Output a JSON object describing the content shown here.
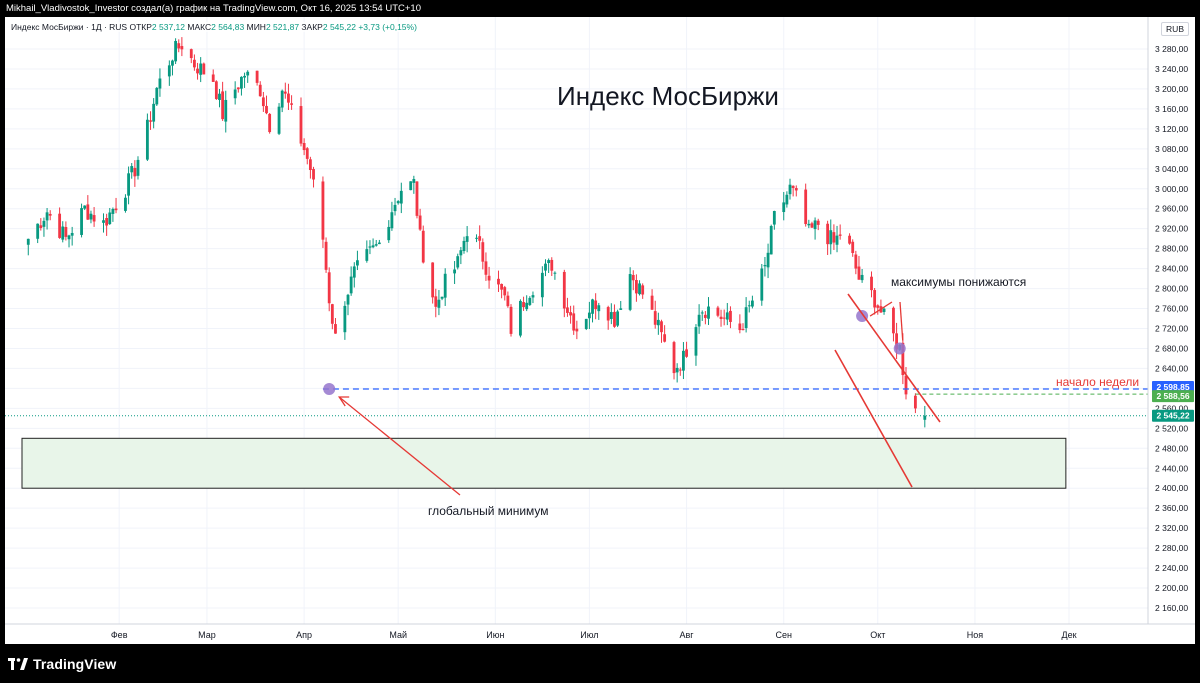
{
  "header": {
    "attribution": "Mikhail_Vladivostok_Investor создал(а) график на TradingView.com, Окт 16, 2025 13:54 UTC+10"
  },
  "legend": {
    "symbol": "Индекс МосБиржи · 1Д · RUS",
    "open_label": "ОТКР",
    "open_value": "2 537,12",
    "high_label": "МАКС",
    "high_value": "2 564,83",
    "low_label": "МИН",
    "low_value": "2 521,87",
    "close_label": "ЗАКР",
    "close_value": "2 545,22",
    "change": "+3,73 (+0,15%)"
  },
  "currency": "RUB",
  "footer": {
    "brand": "TradingView"
  },
  "colors": {
    "up": "#089981",
    "down": "#F23645",
    "zone_fill": "#E8F5E9",
    "level_line": "#2962FF",
    "price_tag_blue": "#2962FF",
    "price_tag_green": "#4CAF50",
    "price_tag_teal": "#089981",
    "annotation": "#E53935",
    "marker": "#9575CD"
  },
  "chart_data": {
    "type": "candlestick",
    "title": "Индекс МосБиржи",
    "ylim": [
      2120,
      3320
    ],
    "y_ticks": [
      "3 280,00",
      "3 240,00",
      "3 200,00",
      "3 160,00",
      "3 120,00",
      "3 080,00",
      "3 040,00",
      "3 000,00",
      "2 960,00",
      "2 920,00",
      "2 880,00",
      "2 840,00",
      "2 800,00",
      "2 760,00",
      "2 720,00",
      "2 680,00",
      "2 640,00",
      "2 600,00",
      "2 560,00",
      "2 520,00",
      "2 480,00",
      "2 440,00",
      "2 400,00",
      "2 360,00",
      "2 320,00",
      "2 280,00",
      "2 240,00",
      "2 200,00",
      "2 160,00"
    ],
    "x_ticks": [
      {
        "label": "Фев",
        "date": "2025-02-01"
      },
      {
        "label": "Мар",
        "date": "2025-03-01"
      },
      {
        "label": "Апр",
        "date": "2025-04-01"
      },
      {
        "label": "Май",
        "date": "2025-05-01"
      },
      {
        "label": "Июн",
        "date": "2025-06-01"
      },
      {
        "label": "Июл",
        "date": "2025-07-01"
      },
      {
        "label": "Авг",
        "date": "2025-08-01"
      },
      {
        "label": "Сен",
        "date": "2025-09-01"
      },
      {
        "label": "Окт",
        "date": "2025-10-01"
      },
      {
        "label": "Ноя",
        "date": "2025-11-01"
      },
      {
        "label": "Дек",
        "date": "2025-12-01"
      }
    ],
    "close_path": [
      [
        "2025-01-03",
        2900
      ],
      [
        "2025-01-09",
        2955
      ],
      [
        "2025-01-15",
        2900
      ],
      [
        "2025-01-21",
        2960
      ],
      [
        "2025-01-27",
        2930
      ],
      [
        "2025-02-03",
        3000
      ],
      [
        "2025-02-06",
        3040
      ],
      [
        "2025-02-10",
        3120
      ],
      [
        "2025-02-13",
        3200
      ],
      [
        "2025-02-18",
        3270
      ],
      [
        "2025-02-21",
        3290
      ],
      [
        "2025-02-25",
        3250
      ],
      [
        "2025-03-03",
        3220
      ],
      [
        "2025-03-06",
        3150
      ],
      [
        "2025-03-10",
        3200
      ],
      [
        "2025-03-13",
        3230
      ],
      [
        "2025-03-18",
        3200
      ],
      [
        "2025-03-21",
        3130
      ],
      [
        "2025-03-25",
        3200
      ],
      [
        "2025-03-28",
        3150
      ],
      [
        "2025-04-01",
        3080
      ],
      [
        "2025-04-03",
        3040
      ],
      [
        "2025-04-07",
        2900
      ],
      [
        "2025-04-09",
        2780
      ],
      [
        "2025-04-11",
        2700
      ],
      [
        "2025-04-14",
        2780
      ],
      [
        "2025-04-17",
        2830
      ],
      [
        "2025-04-22",
        2870
      ],
      [
        "2025-04-25",
        2890
      ],
      [
        "2025-04-29",
        2960
      ],
      [
        "2025-05-02",
        3000
      ],
      [
        "2025-05-06",
        3010
      ],
      [
        "2025-05-08",
        2900
      ],
      [
        "2025-05-13",
        2760
      ],
      [
        "2025-05-15",
        2800
      ],
      [
        "2025-05-20",
        2850
      ],
      [
        "2025-05-23",
        2920
      ],
      [
        "2025-05-27",
        2880
      ],
      [
        "2025-05-30",
        2830
      ],
      [
        "2025-06-04",
        2780
      ],
      [
        "2025-06-06",
        2720
      ],
      [
        "2025-06-11",
        2790
      ],
      [
        "2025-06-16",
        2830
      ],
      [
        "2025-06-19",
        2850
      ],
      [
        "2025-06-24",
        2760
      ],
      [
        "2025-06-27",
        2720
      ],
      [
        "2025-07-01",
        2760
      ],
      [
        "2025-07-04",
        2780
      ],
      [
        "2025-07-09",
        2740
      ],
      [
        "2025-07-14",
        2830
      ],
      [
        "2025-07-18",
        2790
      ],
      [
        "2025-07-23",
        2720
      ],
      [
        "2025-07-28",
        2640
      ],
      [
        "2025-07-31",
        2660
      ],
      [
        "2025-08-05",
        2760
      ],
      [
        "2025-08-08",
        2760
      ],
      [
        "2025-08-13",
        2740
      ],
      [
        "2025-08-18",
        2720
      ],
      [
        "2025-08-21",
        2760
      ],
      [
        "2025-08-26",
        2840
      ],
      [
        "2025-08-29",
        2940
      ],
      [
        "2025-09-03",
        3000
      ],
      [
        "2025-09-05",
        2980
      ],
      [
        "2025-09-09",
        2910
      ],
      [
        "2025-09-12",
        2930
      ],
      [
        "2025-09-17",
        2890
      ],
      [
        "2025-09-20",
        2920
      ],
      [
        "2025-09-25",
        2820
      ],
      [
        "2025-09-30",
        2780
      ],
      [
        "2025-10-03",
        2740
      ],
      [
        "2025-10-08",
        2680
      ],
      [
        "2025-10-10",
        2600
      ],
      [
        "2025-10-14",
        2545
      ]
    ],
    "ohlc_last": {
      "date": "2025-10-16",
      "open": 2537.12,
      "high": 2564.83,
      "low": 2521.87,
      "close": 2545.22
    },
    "zone": {
      "y_top": 2500,
      "y_bottom": 2400,
      "x_start": "2025-01-01",
      "x_end": "2025-11-30"
    },
    "level_line": {
      "value": 2598.85,
      "x_start": "2025-04-07",
      "x_end": "2025-12-31"
    },
    "green_level": {
      "value": 2588.56,
      "x_start": "2025-10-13",
      "x_end": "2025-12-31"
    },
    "price_tags": [
      {
        "value": "2 598,85",
        "y": 2598.85,
        "kind": "blue"
      },
      {
        "value": "2 588,56",
        "y": 2588.56,
        "kind": "green"
      },
      {
        "value": "2 545,22",
        "y": 2545.22,
        "kind": "teal"
      }
    ],
    "annotations": {
      "global_min": "глобальный минимум",
      "lower_highs": "максимумы понижаются",
      "week_start": "начало недели"
    }
  }
}
